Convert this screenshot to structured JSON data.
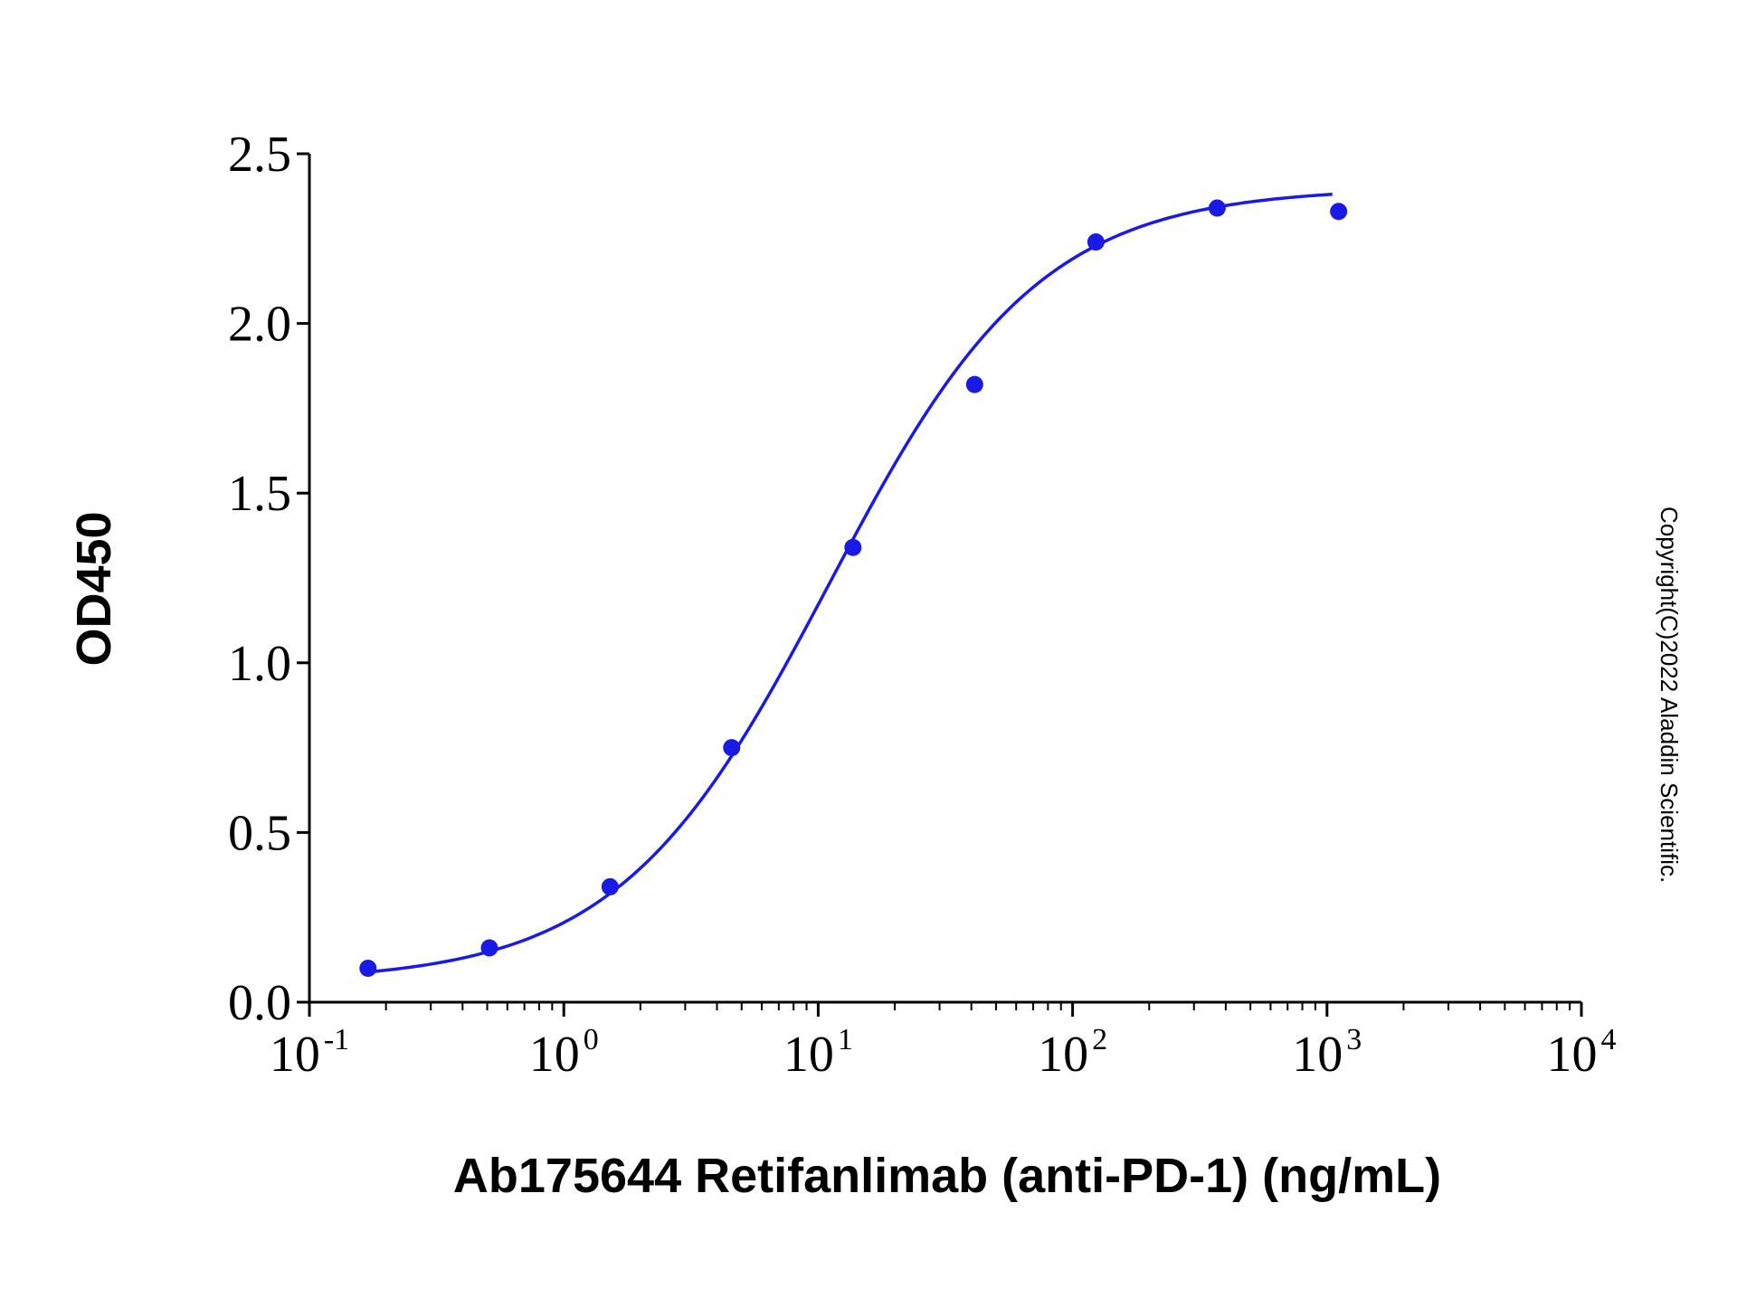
{
  "chart_data": {
    "type": "scatter",
    "xlabel": "Ab175644 Retifanlimab (anti-PD-1) (ng/mL)",
    "ylabel": "OD450",
    "x_scale": "log10",
    "xlim": [
      0.1,
      10000
    ],
    "ylim": [
      0,
      2.5
    ],
    "x_ticks": [
      {
        "base": "10",
        "exp": "-1"
      },
      {
        "base": "10",
        "exp": "0"
      },
      {
        "base": "10",
        "exp": "1"
      },
      {
        "base": "10",
        "exp": "2"
      },
      {
        "base": "10",
        "exp": "3"
      },
      {
        "base": "10",
        "exp": "4"
      }
    ],
    "y_ticks": [
      "0.0",
      "0.5",
      "1.0",
      "1.5",
      "2.0",
      "2.5"
    ],
    "grid": false,
    "series": [
      {
        "color": "#1a1ae6",
        "points": [
          {
            "x": 0.17,
            "y": 0.1
          },
          {
            "x": 0.51,
            "y": 0.16
          },
          {
            "x": 1.52,
            "y": 0.34
          },
          {
            "x": 4.57,
            "y": 0.75
          },
          {
            "x": 13.7,
            "y": 1.34
          },
          {
            "x": 41.2,
            "y": 1.82
          },
          {
            "x": 123.5,
            "y": 2.24
          },
          {
            "x": 370,
            "y": 2.34
          },
          {
            "x": 1111,
            "y": 2.33
          }
        ],
        "fit": {
          "model": "4PL",
          "bottom": 0.06,
          "top": 2.4,
          "ec50": 11.0,
          "hill": 1.05,
          "x_range": [
            0.17,
            1050
          ]
        }
      }
    ]
  },
  "watermark": "Copyright(C)2022 Aladdin Scientific.",
  "colors": {
    "series": "#1a1ae6",
    "axis": "#000000"
  }
}
